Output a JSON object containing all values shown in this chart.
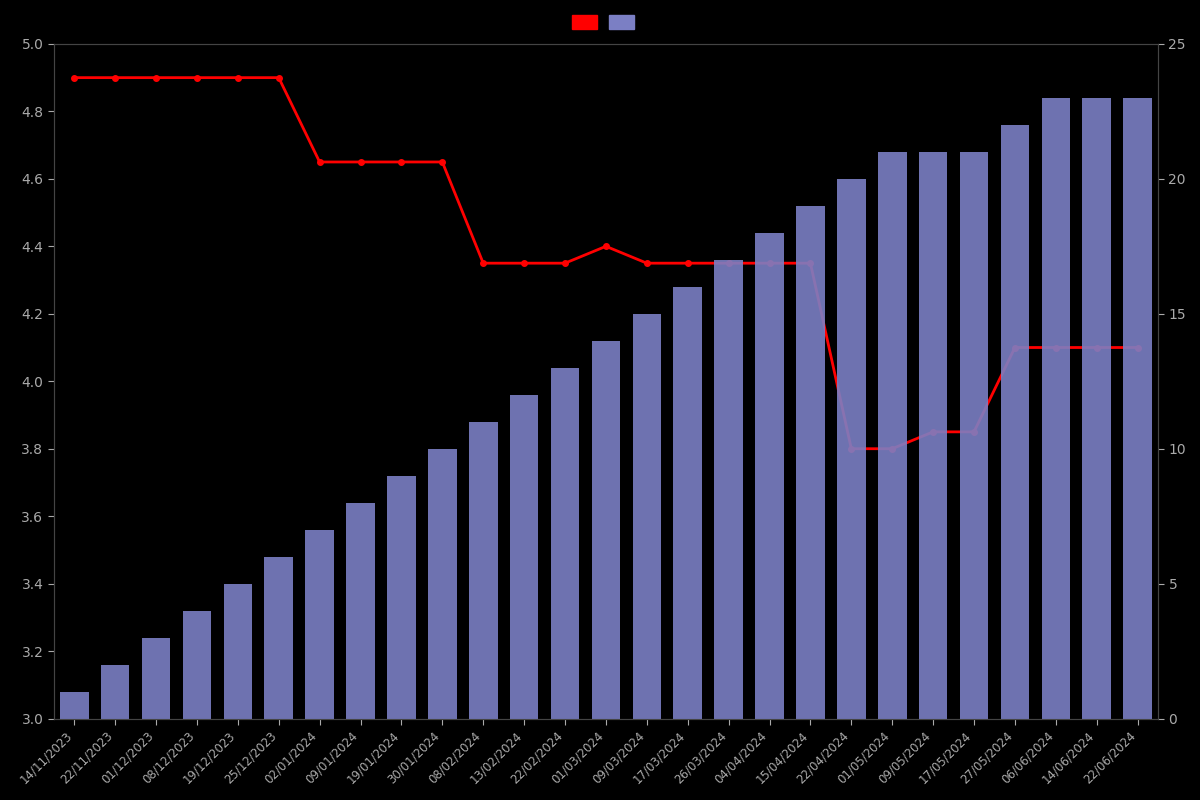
{
  "dates": [
    "14/11/2023",
    "22/11/2023",
    "01/12/2023",
    "08/12/2023",
    "19/12/2023",
    "25/12/2023",
    "02/01/2024",
    "09/01/2024",
    "19/01/2024",
    "30/01/2024",
    "08/02/2024",
    "13/02/2024",
    "22/02/2024",
    "01/03/2024",
    "09/03/2024",
    "17/03/2024",
    "26/03/2024",
    "04/04/2024",
    "15/04/2024",
    "22/04/2024",
    "01/05/2024",
    "09/05/2024",
    "17/05/2024",
    "27/05/2024",
    "06/06/2024",
    "14/06/2024",
    "22/06/2024"
  ],
  "bar_counts": [
    1,
    2,
    3,
    4,
    5,
    6,
    7,
    8,
    9,
    10,
    11,
    12,
    13,
    14,
    15,
    16,
    17,
    18,
    19,
    20,
    21,
    21,
    21,
    22,
    23,
    23,
    23
  ],
  "line_values": [
    4.9,
    4.9,
    4.9,
    4.9,
    4.9,
    4.9,
    4.65,
    4.65,
    4.65,
    4.65,
    4.35,
    4.35,
    4.35,
    4.4,
    4.35,
    4.35,
    4.35,
    4.35,
    4.35,
    3.8,
    3.8,
    3.85,
    3.85,
    4.1,
    4.1,
    4.1,
    4.1
  ],
  "ylim_left": [
    3.0,
    5.0
  ],
  "ylim_right": [
    0,
    25
  ],
  "bar_color": "#7B7FC4",
  "line_color": "#FF0000",
  "background_color": "#000000",
  "text_color": "#AAAAAA",
  "spine_color": "#444444",
  "legend_patch1_color": "#FF0000",
  "legend_patch2_color": "#7B7FC4",
  "yticks_left": [
    3.0,
    3.2,
    3.4,
    3.6,
    3.8,
    4.0,
    4.2,
    4.4,
    4.6,
    4.8,
    5.0
  ],
  "yticks_right": [
    0,
    5,
    10,
    15,
    20,
    25
  ]
}
